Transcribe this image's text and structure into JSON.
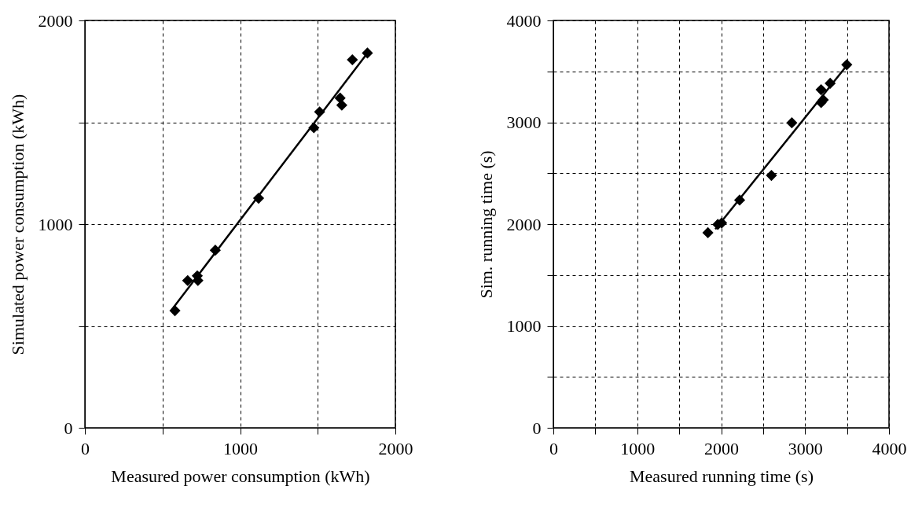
{
  "chart_data": [
    {
      "type": "scatter",
      "xlabel": "Measured power consumption (kWh)",
      "ylabel": "Simulated power consumption (kWh)",
      "xlim": [
        0,
        2000
      ],
      "ylim": [
        0,
        2000
      ],
      "xticks": [
        0,
        {
          "value": 500,
          "label": null
        },
        1000,
        {
          "value": 1500,
          "label": null
        },
        2000
      ],
      "yticks": [
        0,
        {
          "value": 500,
          "label": null
        },
        1000,
        {
          "value": 1500,
          "label": null
        },
        2000
      ],
      "grid": true,
      "marker": "diamond",
      "series": [
        {
          "color": "#000000",
          "x": [
            580,
            662,
            724,
            728,
            840,
            1119,
            1475,
            1512,
            1644,
            1655,
            1723,
            1820
          ],
          "values": [
            575,
            723,
            746,
            723,
            872,
            1127,
            1473,
            1551,
            1619,
            1584,
            1807,
            1840
          ]
        },
        {
          "type": "line",
          "color": "#000000",
          "marker": "none",
          "line_style": "solid",
          "x": [
            560,
            1820
          ],
          "values": [
            580,
            1840
          ]
        }
      ]
    },
    {
      "type": "scatter",
      "xlabel": "Measured running time (s)",
      "ylabel": "Sim. running time (s)",
      "xlim": [
        0,
        4000
      ],
      "ylim": [
        0,
        4000
      ],
      "xticks": [
        0,
        {
          "value": 500,
          "label": null
        },
        1000,
        {
          "value": 1500,
          "label": null
        },
        2000,
        {
          "value": 2500,
          "label": null
        },
        3000,
        {
          "value": 3500,
          "label": null
        },
        4000
      ],
      "yticks": [
        0,
        {
          "value": 500,
          "label": null
        },
        1000,
        {
          "value": 1500,
          "label": null
        },
        2000,
        {
          "value": 2500,
          "label": null
        },
        3000,
        {
          "value": 3500,
          "label": null
        },
        4000
      ],
      "grid": true,
      "marker": "diamond",
      "series": [
        {
          "color": "#000000",
          "x": [
            1842,
            1960,
            2006,
            2220,
            2599,
            2842,
            3191,
            3299,
            3191,
            3217,
            3497
          ],
          "values": [
            1916,
            1997,
            2011,
            2236,
            2478,
            2995,
            3320,
            3383,
            3193,
            3220,
            3565
          ]
        },
        {
          "type": "line",
          "color": "#000000",
          "marker": "none",
          "line_style": "solid",
          "x": [
            1930,
            3500
          ],
          "values": [
            1950,
            3560
          ]
        }
      ]
    }
  ]
}
